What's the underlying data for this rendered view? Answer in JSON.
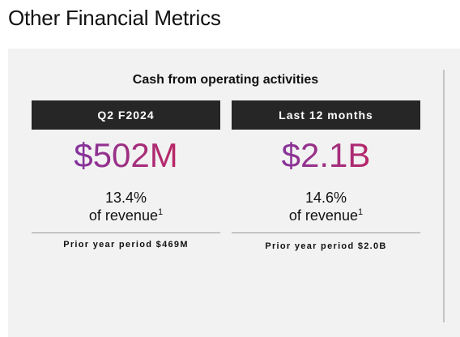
{
  "page": {
    "title": "Other Financial Metrics"
  },
  "section": {
    "title": "Cash from operating activities"
  },
  "columns": [
    {
      "header": "Q2 F2024",
      "value": "$502M",
      "percent": "13.4%",
      "percent_label": "of revenue",
      "footnote": "1",
      "prior": "Prior year period $469M"
    },
    {
      "header": "Last 12 months",
      "value": "$2.1B",
      "percent": "14.6%",
      "percent_label": "of revenue",
      "footnote": "1",
      "prior": "Prior year period $2.0B"
    }
  ],
  "colors": {
    "header_bg": "#262626",
    "panel_bg": "#f2f2f2",
    "value_gradient_start": "#6b35b4",
    "value_gradient_end": "#d01f4d"
  }
}
